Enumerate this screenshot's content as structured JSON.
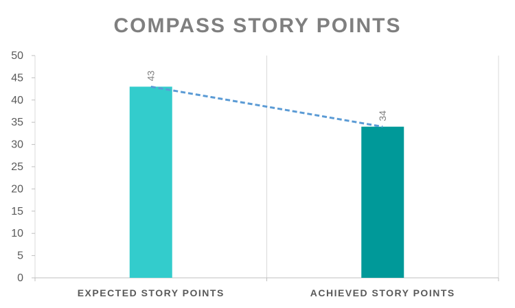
{
  "chart_data": {
    "type": "bar",
    "title": "COMPASS STORY POINTS",
    "categories": [
      "EXPECTED STORY POINTS",
      "ACHIEVED STORY POINTS"
    ],
    "values": [
      43,
      34
    ],
    "colors": [
      "#33cccc",
      "#009999"
    ],
    "trendline": {
      "style": "dashed",
      "color": "#5b9bd5"
    },
    "data_labels": [
      "43",
      "34"
    ],
    "ylim": [
      0,
      50
    ],
    "yticks": [
      0,
      5,
      10,
      15,
      20,
      25,
      30,
      35,
      40,
      45,
      50
    ],
    "grid": "vertical category separators"
  }
}
